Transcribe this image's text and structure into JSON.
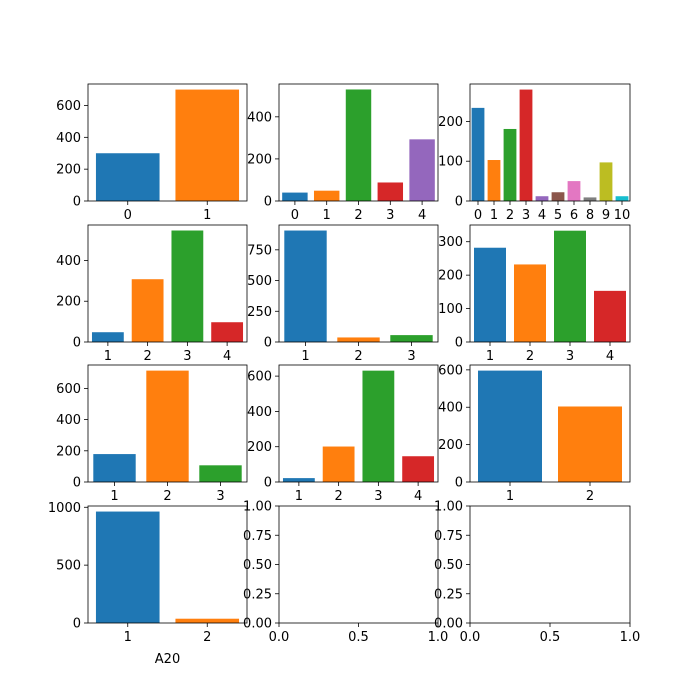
{
  "chart_data": [
    {
      "type": "bar",
      "categories": [
        "0",
        "1"
      ],
      "values": [
        300,
        700
      ],
      "yticks": [
        0,
        200,
        400,
        600
      ],
      "ylim": [
        0,
        735
      ],
      "xlabel": ""
    },
    {
      "type": "bar",
      "categories": [
        "0",
        "1",
        "2",
        "3",
        "4"
      ],
      "values": [
        40,
        49,
        530,
        88,
        293
      ],
      "yticks": [
        0,
        200,
        400
      ],
      "ylim": [
        0,
        556
      ],
      "xlabel": ""
    },
    {
      "type": "bar",
      "categories": [
        "0",
        "1",
        "2",
        "3",
        "4",
        "5",
        "6",
        "8",
        "9",
        "10"
      ],
      "values": [
        234,
        103,
        181,
        280,
        12,
        22,
        50,
        9,
        97,
        12
      ],
      "yticks": [
        0,
        100,
        200
      ],
      "ylim": [
        0,
        294
      ],
      "xlabel": ""
    },
    {
      "type": "bar",
      "categories": [
        "1",
        "2",
        "3",
        "4"
      ],
      "values": [
        48,
        308,
        547,
        97
      ],
      "yticks": [
        0,
        200,
        400
      ],
      "ylim": [
        0,
        574
      ],
      "xlabel": ""
    },
    {
      "type": "bar",
      "categories": [
        "1",
        "2",
        "3"
      ],
      "values": [
        907,
        37,
        56
      ],
      "yticks": [
        0,
        250,
        500,
        750
      ],
      "ylim": [
        0,
        952
      ],
      "xlabel": ""
    },
    {
      "type": "bar",
      "categories": [
        "1",
        "2",
        "3",
        "4"
      ],
      "values": [
        282,
        232,
        333,
        153
      ],
      "yticks": [
        0,
        100,
        200,
        300
      ],
      "ylim": [
        0,
        350
      ],
      "xlabel": ""
    },
    {
      "type": "bar",
      "categories": [
        "1",
        "2",
        "3"
      ],
      "values": [
        179,
        714,
        107
      ],
      "yticks": [
        0,
        200,
        400,
        600
      ],
      "ylim": [
        0,
        750
      ],
      "xlabel": ""
    },
    {
      "type": "bar",
      "categories": [
        "1",
        "2",
        "3",
        "4"
      ],
      "values": [
        22,
        201,
        631,
        146
      ],
      "yticks": [
        0,
        200,
        400,
        600
      ],
      "ylim": [
        0,
        663
      ],
      "xlabel": ""
    },
    {
      "type": "bar",
      "categories": [
        "1",
        "2"
      ],
      "values": [
        596,
        404
      ],
      "yticks": [
        0,
        200,
        400,
        600
      ],
      "ylim": [
        0,
        626
      ],
      "xlabel": ""
    },
    {
      "type": "bar",
      "categories": [
        "1",
        "2"
      ],
      "values": [
        963,
        37
      ],
      "yticks": [
        0,
        500,
        1000
      ],
      "ylim": [
        0,
        1011
      ],
      "xlabel": "A20"
    },
    {
      "type": "empty",
      "xticks": [
        "0.0",
        "0.5",
        "1.0"
      ],
      "yticks": [
        "0.00",
        "0.25",
        "0.50",
        "0.75",
        "1.00"
      ]
    },
    {
      "type": "empty",
      "xticks": [
        "0.0",
        "0.5",
        "1.0"
      ],
      "yticks": [
        "0.00",
        "0.25",
        "0.50",
        "0.75",
        "1.00"
      ]
    }
  ],
  "palette": [
    "#1f77b4",
    "#ff7f0e",
    "#2ca02c",
    "#d62728",
    "#9467bd",
    "#8c564b",
    "#e377c2",
    "#7f7f7f",
    "#bcbd22",
    "#17becf"
  ]
}
